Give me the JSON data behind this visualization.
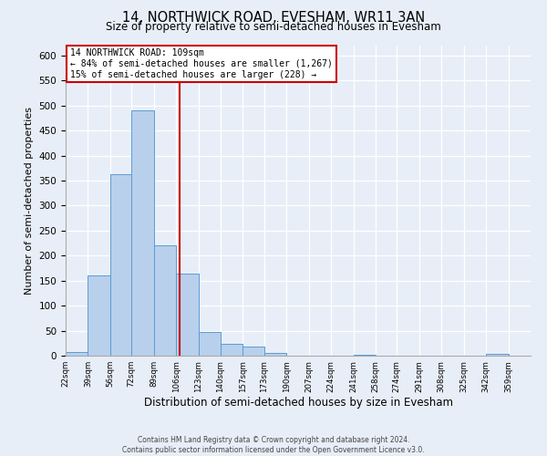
{
  "title": "14, NORTHWICK ROAD, EVESHAM, WR11 3AN",
  "subtitle": "Size of property relative to semi-detached houses in Evesham",
  "xlabel": "Distribution of semi-detached houses by size in Evesham",
  "ylabel": "Number of semi-detached properties",
  "bin_labels": [
    "22sqm",
    "39sqm",
    "56sqm",
    "72sqm",
    "89sqm",
    "106sqm",
    "123sqm",
    "140sqm",
    "157sqm",
    "173sqm",
    "190sqm",
    "207sqm",
    "224sqm",
    "241sqm",
    "258sqm",
    "274sqm",
    "291sqm",
    "308sqm",
    "325sqm",
    "342sqm",
    "359sqm"
  ],
  "bin_edges": [
    22,
    39,
    56,
    72,
    89,
    106,
    123,
    140,
    157,
    173,
    190,
    207,
    224,
    241,
    258,
    274,
    291,
    308,
    325,
    342,
    359,
    376
  ],
  "bar_heights": [
    8,
    160,
    363,
    490,
    220,
    165,
    48,
    23,
    18,
    6,
    0,
    0,
    0,
    2,
    0,
    0,
    0,
    0,
    0,
    3,
    0
  ],
  "bar_color": "#b8d0eb",
  "bar_edge_color": "#5b9bd5",
  "property_value": 109,
  "vline_color": "#cc0000",
  "box_text_line1": "14 NORTHWICK ROAD: 109sqm",
  "box_text_line2": "← 84% of semi-detached houses are smaller (1,267)",
  "box_text_line3": "15% of semi-detached houses are larger (228) →",
  "box_edge_color": "#cc0000",
  "ylim": [
    0,
    620
  ],
  "yticks": [
    0,
    50,
    100,
    150,
    200,
    250,
    300,
    350,
    400,
    450,
    500,
    550,
    600
  ],
  "footer_line1": "Contains HM Land Registry data © Crown copyright and database right 2024.",
  "footer_line2": "Contains public sector information licensed under the Open Government Licence v3.0.",
  "bg_color": "#e8eef7"
}
